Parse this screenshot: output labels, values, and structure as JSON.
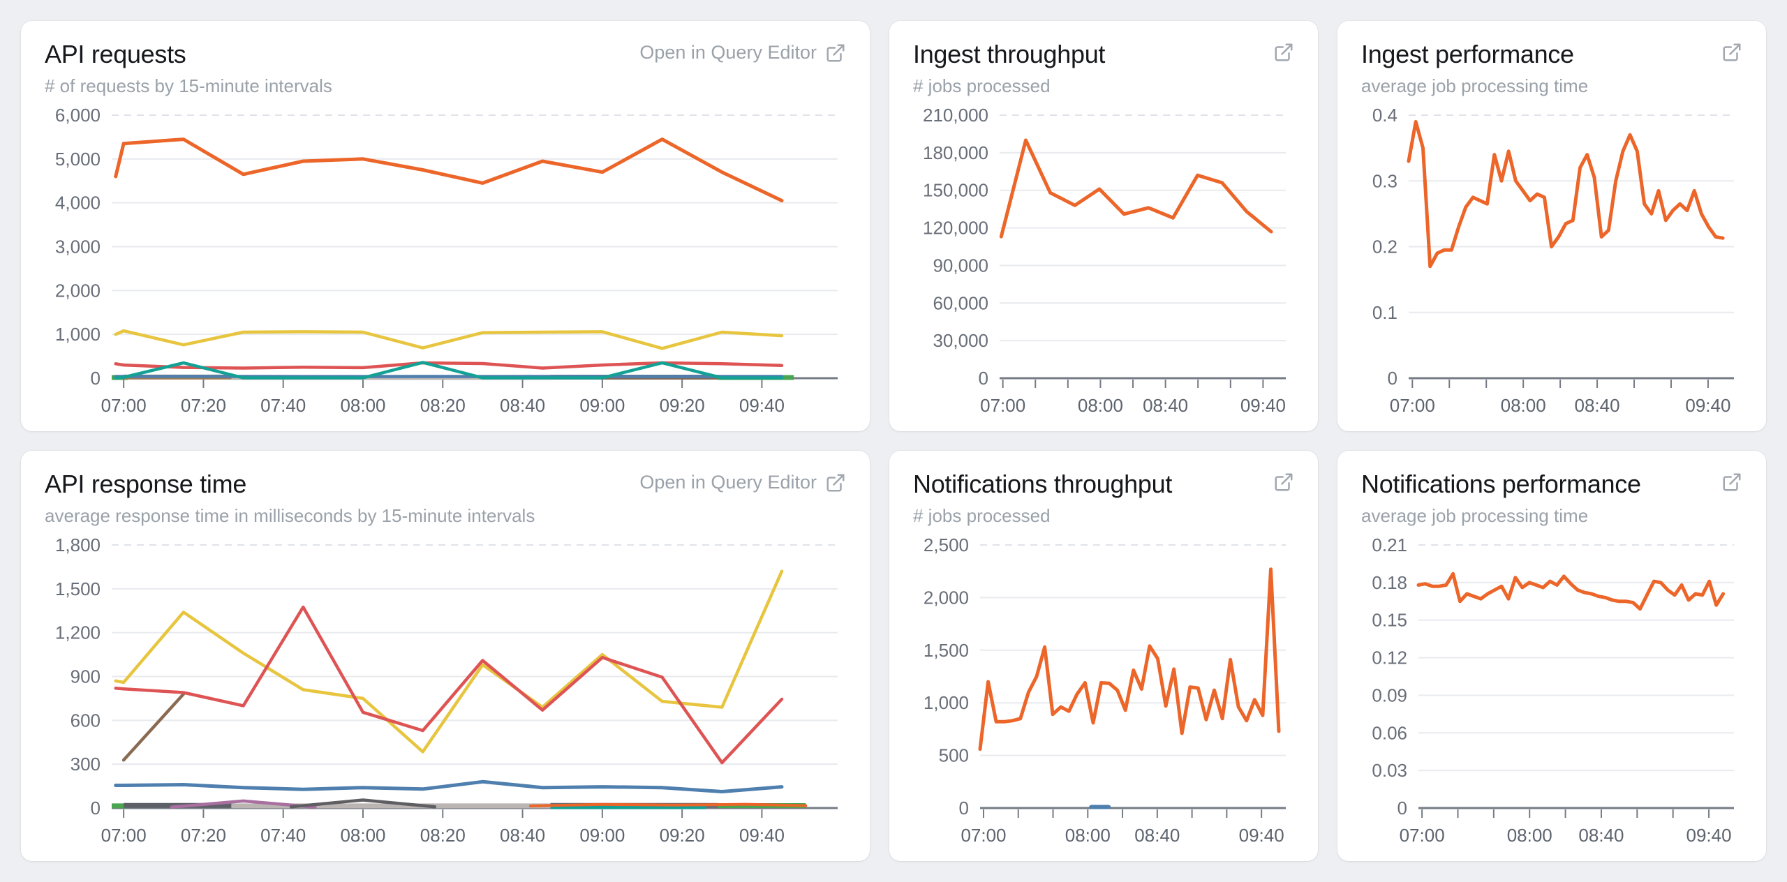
{
  "page": {
    "background": "#edeff2",
    "card_background": "#ffffff"
  },
  "colors": {
    "accent_orange": "#ec6529",
    "yellow": "#e7c53f",
    "red": "#de5454",
    "teal": "#14a195",
    "blue": "#4e7fae",
    "brown": "#9b7a58",
    "green": "#4aa551",
    "light_gray_band": "#bab5b2",
    "dark_band": "#7c6a5e",
    "purple": "#a86fa0",
    "dark_gray": "#5f5f63",
    "muted_text": "#9aa1a9",
    "axis_text": "#60666e",
    "axis_line": "#757b84",
    "gridline": "#e8eaee"
  },
  "panels": [
    {
      "title": "API requests",
      "subtitle": "# of requests by 15-minute intervals",
      "action_label": "Open in Query Editor",
      "chart_data": {
        "type": "line",
        "y_max": 6000,
        "y_ticks": [
          {
            "v": 0,
            "label": "0"
          },
          {
            "v": 1000,
            "label": "1,000"
          },
          {
            "v": 2000,
            "label": "2,000"
          },
          {
            "v": 3000,
            "label": "3,000"
          },
          {
            "v": 4000,
            "label": "4,000"
          },
          {
            "v": 5000,
            "label": "5,000"
          },
          {
            "v": 6000,
            "label": "6,000"
          }
        ],
        "x_domain": [
          417,
          599
        ],
        "x_ticks": [
          {
            "t": 420,
            "label": "07:00"
          },
          {
            "t": 440,
            "label": "07:20"
          },
          {
            "t": 460,
            "label": "07:40"
          },
          {
            "t": 480,
            "label": "08:00"
          },
          {
            "t": 500,
            "label": "08:20"
          },
          {
            "t": 520,
            "label": "08:40"
          },
          {
            "t": 540,
            "label": "09:00"
          },
          {
            "t": 560,
            "label": "09:20"
          },
          {
            "t": 580,
            "label": "09:40"
          }
        ],
        "times": [
          418,
          420,
          435,
          450,
          465,
          480,
          495,
          510,
          525,
          540,
          555,
          570,
          585
        ],
        "band_segments": [
          {
            "color": "#4aa551",
            "t0": 417,
            "t1": 421,
            "v": 16
          },
          {
            "color": "#9b7a58",
            "t0": 420,
            "t1": 447,
            "v": 26
          },
          {
            "color": "#bab5b2",
            "t0": 447,
            "t1": 527,
            "v": 18
          },
          {
            "color": "#82695a",
            "t0": 527,
            "t1": 569,
            "v": 24
          },
          {
            "color": "#4aa551",
            "t0": 569,
            "t1": 588,
            "v": 16
          }
        ],
        "series": [
          {
            "name": "blue",
            "color": "#4e7fae",
            "w": 4.5,
            "values": [
              40,
              40,
              42,
              40,
              38,
              38,
              40,
              38,
              40,
              40,
              38,
              40,
              40
            ]
          },
          {
            "name": "red",
            "color": "#de5454",
            "w": 4.5,
            "values": [
              330,
              300,
              245,
              230,
              250,
              240,
              350,
              335,
              230,
              300,
              350,
              330,
              290
            ]
          },
          {
            "name": "teal",
            "color": "#14a195",
            "w": 4.5,
            "values": [
              5,
              20,
              350,
              8,
              8,
              8,
              360,
              8,
              8,
              8,
              350,
              8,
              8
            ]
          },
          {
            "name": "yellow",
            "color": "#e7c53f",
            "w": 4.5,
            "values": [
              1000,
              1080,
              760,
              1050,
              1060,
              1050,
              690,
              1040,
              1050,
              1060,
              680,
              1050,
              970
            ]
          },
          {
            "name": "orange",
            "color": "#ec6529",
            "w": 5,
            "values": [
              4600,
              5350,
              5450,
              4650,
              4950,
              5000,
              4750,
              4450,
              4950,
              4700,
              5450,
              4700,
              4050
            ]
          }
        ]
      }
    },
    {
      "title": "Ingest throughput",
      "subtitle": "# jobs processed",
      "action_label": null,
      "chart_data": {
        "type": "line",
        "y_max": 210000,
        "y_ticks": [
          {
            "v": 0,
            "label": "0"
          },
          {
            "v": 30000,
            "label": "30,000"
          },
          {
            "v": 60000,
            "label": "60,000"
          },
          {
            "v": 90000,
            "label": "90,000"
          },
          {
            "v": 120000,
            "label": "120,000"
          },
          {
            "v": 150000,
            "label": "150,000"
          },
          {
            "v": 180000,
            "label": "180,000"
          },
          {
            "v": 210000,
            "label": "210,000"
          }
        ],
        "x_domain": [
          418,
          594
        ],
        "x_ticks": [
          {
            "t": 420,
            "label": "07:00"
          },
          {
            "t": 440,
            "label": ""
          },
          {
            "t": 460,
            "label": ""
          },
          {
            "t": 480,
            "label": "08:00"
          },
          {
            "t": 500,
            "label": ""
          },
          {
            "t": 520,
            "label": "08:40"
          },
          {
            "t": 540,
            "label": ""
          },
          {
            "t": 560,
            "label": ""
          },
          {
            "t": 580,
            "label": "09:40"
          }
        ],
        "data_t0": 419,
        "data_t1": 585,
        "series": [
          {
            "name": "orange",
            "color": "#ec6529",
            "w": 5,
            "values": [
              113000,
              190000,
              148000,
              138000,
              151000,
              131000,
              136000,
              128000,
              162000,
              156000,
              133000,
              117000
            ]
          }
        ]
      }
    },
    {
      "title": "Ingest performance",
      "subtitle": "average job processing time",
      "action_label": null,
      "chart_data": {
        "type": "line",
        "y_max": 0.4,
        "y_ticks": [
          {
            "v": 0,
            "label": "0"
          },
          {
            "v": 0.1,
            "label": "0.1"
          },
          {
            "v": 0.2,
            "label": "0.2"
          },
          {
            "v": 0.3,
            "label": "0.3"
          },
          {
            "v": 0.4,
            "label": "0.4"
          }
        ],
        "x_domain": [
          418,
          594
        ],
        "x_ticks": [
          {
            "t": 420,
            "label": "07:00"
          },
          {
            "t": 440,
            "label": ""
          },
          {
            "t": 460,
            "label": ""
          },
          {
            "t": 480,
            "label": "08:00"
          },
          {
            "t": 500,
            "label": ""
          },
          {
            "t": 520,
            "label": "08:40"
          },
          {
            "t": 540,
            "label": ""
          },
          {
            "t": 560,
            "label": ""
          },
          {
            "t": 580,
            "label": "09:40"
          }
        ],
        "data_t0": 418,
        "data_t1": 588,
        "series": [
          {
            "name": "orange",
            "color": "#ec6529",
            "w": 5,
            "values": [
              0.33,
              0.39,
              0.35,
              0.17,
              0.19,
              0.195,
              0.195,
              0.23,
              0.26,
              0.275,
              0.27,
              0.265,
              0.34,
              0.3,
              0.345,
              0.3,
              0.285,
              0.27,
              0.28,
              0.275,
              0.2,
              0.215,
              0.235,
              0.24,
              0.32,
              0.34,
              0.305,
              0.215,
              0.225,
              0.3,
              0.345,
              0.37,
              0.345,
              0.265,
              0.25,
              0.285,
              0.24,
              0.255,
              0.265,
              0.255,
              0.285,
              0.25,
              0.23,
              0.215,
              0.213
            ]
          }
        ]
      }
    },
    {
      "title": "API response time",
      "subtitle": "average response time in milliseconds by 15-minute intervals",
      "action_label": "Open in Query Editor",
      "chart_data": {
        "type": "line",
        "y_max": 1800,
        "y_ticks": [
          {
            "v": 0,
            "label": "0"
          },
          {
            "v": 300,
            "label": "300"
          },
          {
            "v": 600,
            "label": "600"
          },
          {
            "v": 900,
            "label": "900"
          },
          {
            "v": 1200,
            "label": "1,200"
          },
          {
            "v": 1500,
            "label": "1,500"
          },
          {
            "v": 1800,
            "label": "1,800"
          }
        ],
        "x_domain": [
          417,
          599
        ],
        "x_ticks": [
          {
            "t": 420,
            "label": "07:00"
          },
          {
            "t": 440,
            "label": "07:20"
          },
          {
            "t": 460,
            "label": "07:40"
          },
          {
            "t": 480,
            "label": "08:00"
          },
          {
            "t": 500,
            "label": "08:20"
          },
          {
            "t": 520,
            "label": "08:40"
          },
          {
            "t": 540,
            "label": "09:00"
          },
          {
            "t": 560,
            "label": "09:20"
          },
          {
            "t": 580,
            "label": "09:40"
          }
        ],
        "times": [
          418,
          420,
          435,
          450,
          465,
          480,
          495,
          510,
          525,
          540,
          555,
          570,
          585
        ],
        "band_segments": [
          {
            "color": "#4aa551",
            "t0": 417,
            "t1": 421,
            "v": 15
          },
          {
            "color": "#5d6066",
            "t0": 420,
            "t1": 447,
            "v": 18
          },
          {
            "color": "#bab5b2",
            "t0": 447,
            "t1": 527,
            "v": 15
          },
          {
            "color": "#6a6d72",
            "t0": 527,
            "t1": 569,
            "v": 18
          },
          {
            "color": "#14a195",
            "t0": 527,
            "t1": 566,
            "v": 9
          },
          {
            "color": "#4aa551",
            "t0": 569,
            "t1": 591,
            "v": 17
          }
        ],
        "series": [
          {
            "name": "purple",
            "color": "#a86fa0",
            "w": 4.5,
            "times": [
              432,
              450,
              468
            ],
            "values": [
              6,
              48,
              6
            ]
          },
          {
            "name": "dark-gray",
            "color": "#5f5f63",
            "w": 4.5,
            "times": [
              462,
              480,
              498
            ],
            "values": [
              8,
              55,
              8
            ]
          },
          {
            "name": "orange-low",
            "color": "#ec6529",
            "w": 4,
            "times": [
              522,
              540,
              558,
              576,
              591
            ],
            "values": [
              14,
              25,
              20,
              26,
              16
            ]
          },
          {
            "name": "blue",
            "color": "#4e7fae",
            "w": 5,
            "values": [
              155,
              155,
              160,
              140,
              128,
              140,
              130,
              180,
              140,
              145,
              140,
              112,
              145
            ]
          },
          {
            "name": "brown",
            "color": "#8a6b52",
            "w": 4.5,
            "times": [
              420,
              435
            ],
            "values": [
              328,
              780
            ]
          },
          {
            "name": "yellow",
            "color": "#e7c53f",
            "w": 4.5,
            "values": [
              870,
              860,
              1340,
              1060,
              810,
              750,
              385,
              980,
              690,
              1050,
              730,
              690,
              1620
            ]
          },
          {
            "name": "red",
            "color": "#de5454",
            "w": 4.5,
            "values": [
              820,
              815,
              790,
              700,
              1375,
              655,
              530,
              1010,
              670,
              1030,
              895,
              310,
              745
            ]
          }
        ]
      }
    },
    {
      "title": "Notifications throughput",
      "subtitle": "# jobs processed",
      "action_label": null,
      "chart_data": {
        "type": "line",
        "y_max": 2500,
        "y_ticks": [
          {
            "v": 0,
            "label": "0"
          },
          {
            "v": 500,
            "label": "500"
          },
          {
            "v": 1000,
            "label": "1,000"
          },
          {
            "v": 1500,
            "label": "1,500"
          },
          {
            "v": 2000,
            "label": "2,000"
          },
          {
            "v": 2500,
            "label": "2,500"
          }
        ],
        "x_domain": [
          418,
          594
        ],
        "x_ticks": [
          {
            "t": 420,
            "label": "07:00"
          },
          {
            "t": 440,
            "label": ""
          },
          {
            "t": 460,
            "label": ""
          },
          {
            "t": 480,
            "label": "08:00"
          },
          {
            "t": 500,
            "label": ""
          },
          {
            "t": 520,
            "label": "08:40"
          },
          {
            "t": 540,
            "label": ""
          },
          {
            "t": 560,
            "label": ""
          },
          {
            "t": 580,
            "label": "09:40"
          }
        ],
        "data_t0": 418,
        "data_t1": 590,
        "series": [
          {
            "name": "blue",
            "color": "#4e7fae",
            "w": 6,
            "t0": 482,
            "t1": 492,
            "values": [
              10,
              10
            ]
          },
          {
            "name": "orange",
            "color": "#ec6529",
            "w": 5,
            "values": [
              560,
              1200,
              820,
              820,
              830,
              850,
              1100,
              1250,
              1530,
              890,
              960,
              920,
              1080,
              1190,
              810,
              1190,
              1185,
              1120,
              930,
              1310,
              1130,
              1540,
              1420,
              970,
              1320,
              710,
              1150,
              1140,
              840,
              1120,
              850,
              1410,
              960,
              830,
              1030,
              880,
              2270,
              730
            ]
          }
        ]
      }
    },
    {
      "title": "Notifications performance",
      "subtitle": "average job processing time",
      "action_label": null,
      "chart_data": {
        "type": "line",
        "y_max": 0.21,
        "y_ticks": [
          {
            "v": 0,
            "label": "0"
          },
          {
            "v": 0.03,
            "label": "0.03"
          },
          {
            "v": 0.06,
            "label": "0.06"
          },
          {
            "v": 0.09,
            "label": "0.09"
          },
          {
            "v": 0.12,
            "label": "0.12"
          },
          {
            "v": 0.15,
            "label": "0.15"
          },
          {
            "v": 0.18,
            "label": "0.18"
          },
          {
            "v": 0.21,
            "label": "0.21"
          }
        ],
        "x_domain": [
          418,
          594
        ],
        "x_ticks": [
          {
            "t": 420,
            "label": "07:00"
          },
          {
            "t": 440,
            "label": ""
          },
          {
            "t": 460,
            "label": ""
          },
          {
            "t": 480,
            "label": "08:00"
          },
          {
            "t": 500,
            "label": ""
          },
          {
            "t": 520,
            "label": "08:40"
          },
          {
            "t": 540,
            "label": ""
          },
          {
            "t": 560,
            "label": ""
          },
          {
            "t": 580,
            "label": "09:40"
          }
        ],
        "data_t0": 418,
        "data_t1": 588,
        "series": [
          {
            "name": "orange",
            "color": "#ec6529",
            "w": 5,
            "values": [
              0.178,
              0.179,
              0.177,
              0.177,
              0.178,
              0.187,
              0.165,
              0.171,
              0.169,
              0.167,
              0.171,
              0.174,
              0.177,
              0.167,
              0.184,
              0.176,
              0.18,
              0.178,
              0.176,
              0.181,
              0.178,
              0.185,
              0.179,
              0.174,
              0.172,
              0.171,
              0.169,
              0.168,
              0.166,
              0.165,
              0.165,
              0.164,
              0.159,
              0.17,
              0.181,
              0.18,
              0.174,
              0.17,
              0.178,
              0.166,
              0.171,
              0.17,
              0.181,
              0.162,
              0.171
            ]
          }
        ]
      }
    }
  ]
}
